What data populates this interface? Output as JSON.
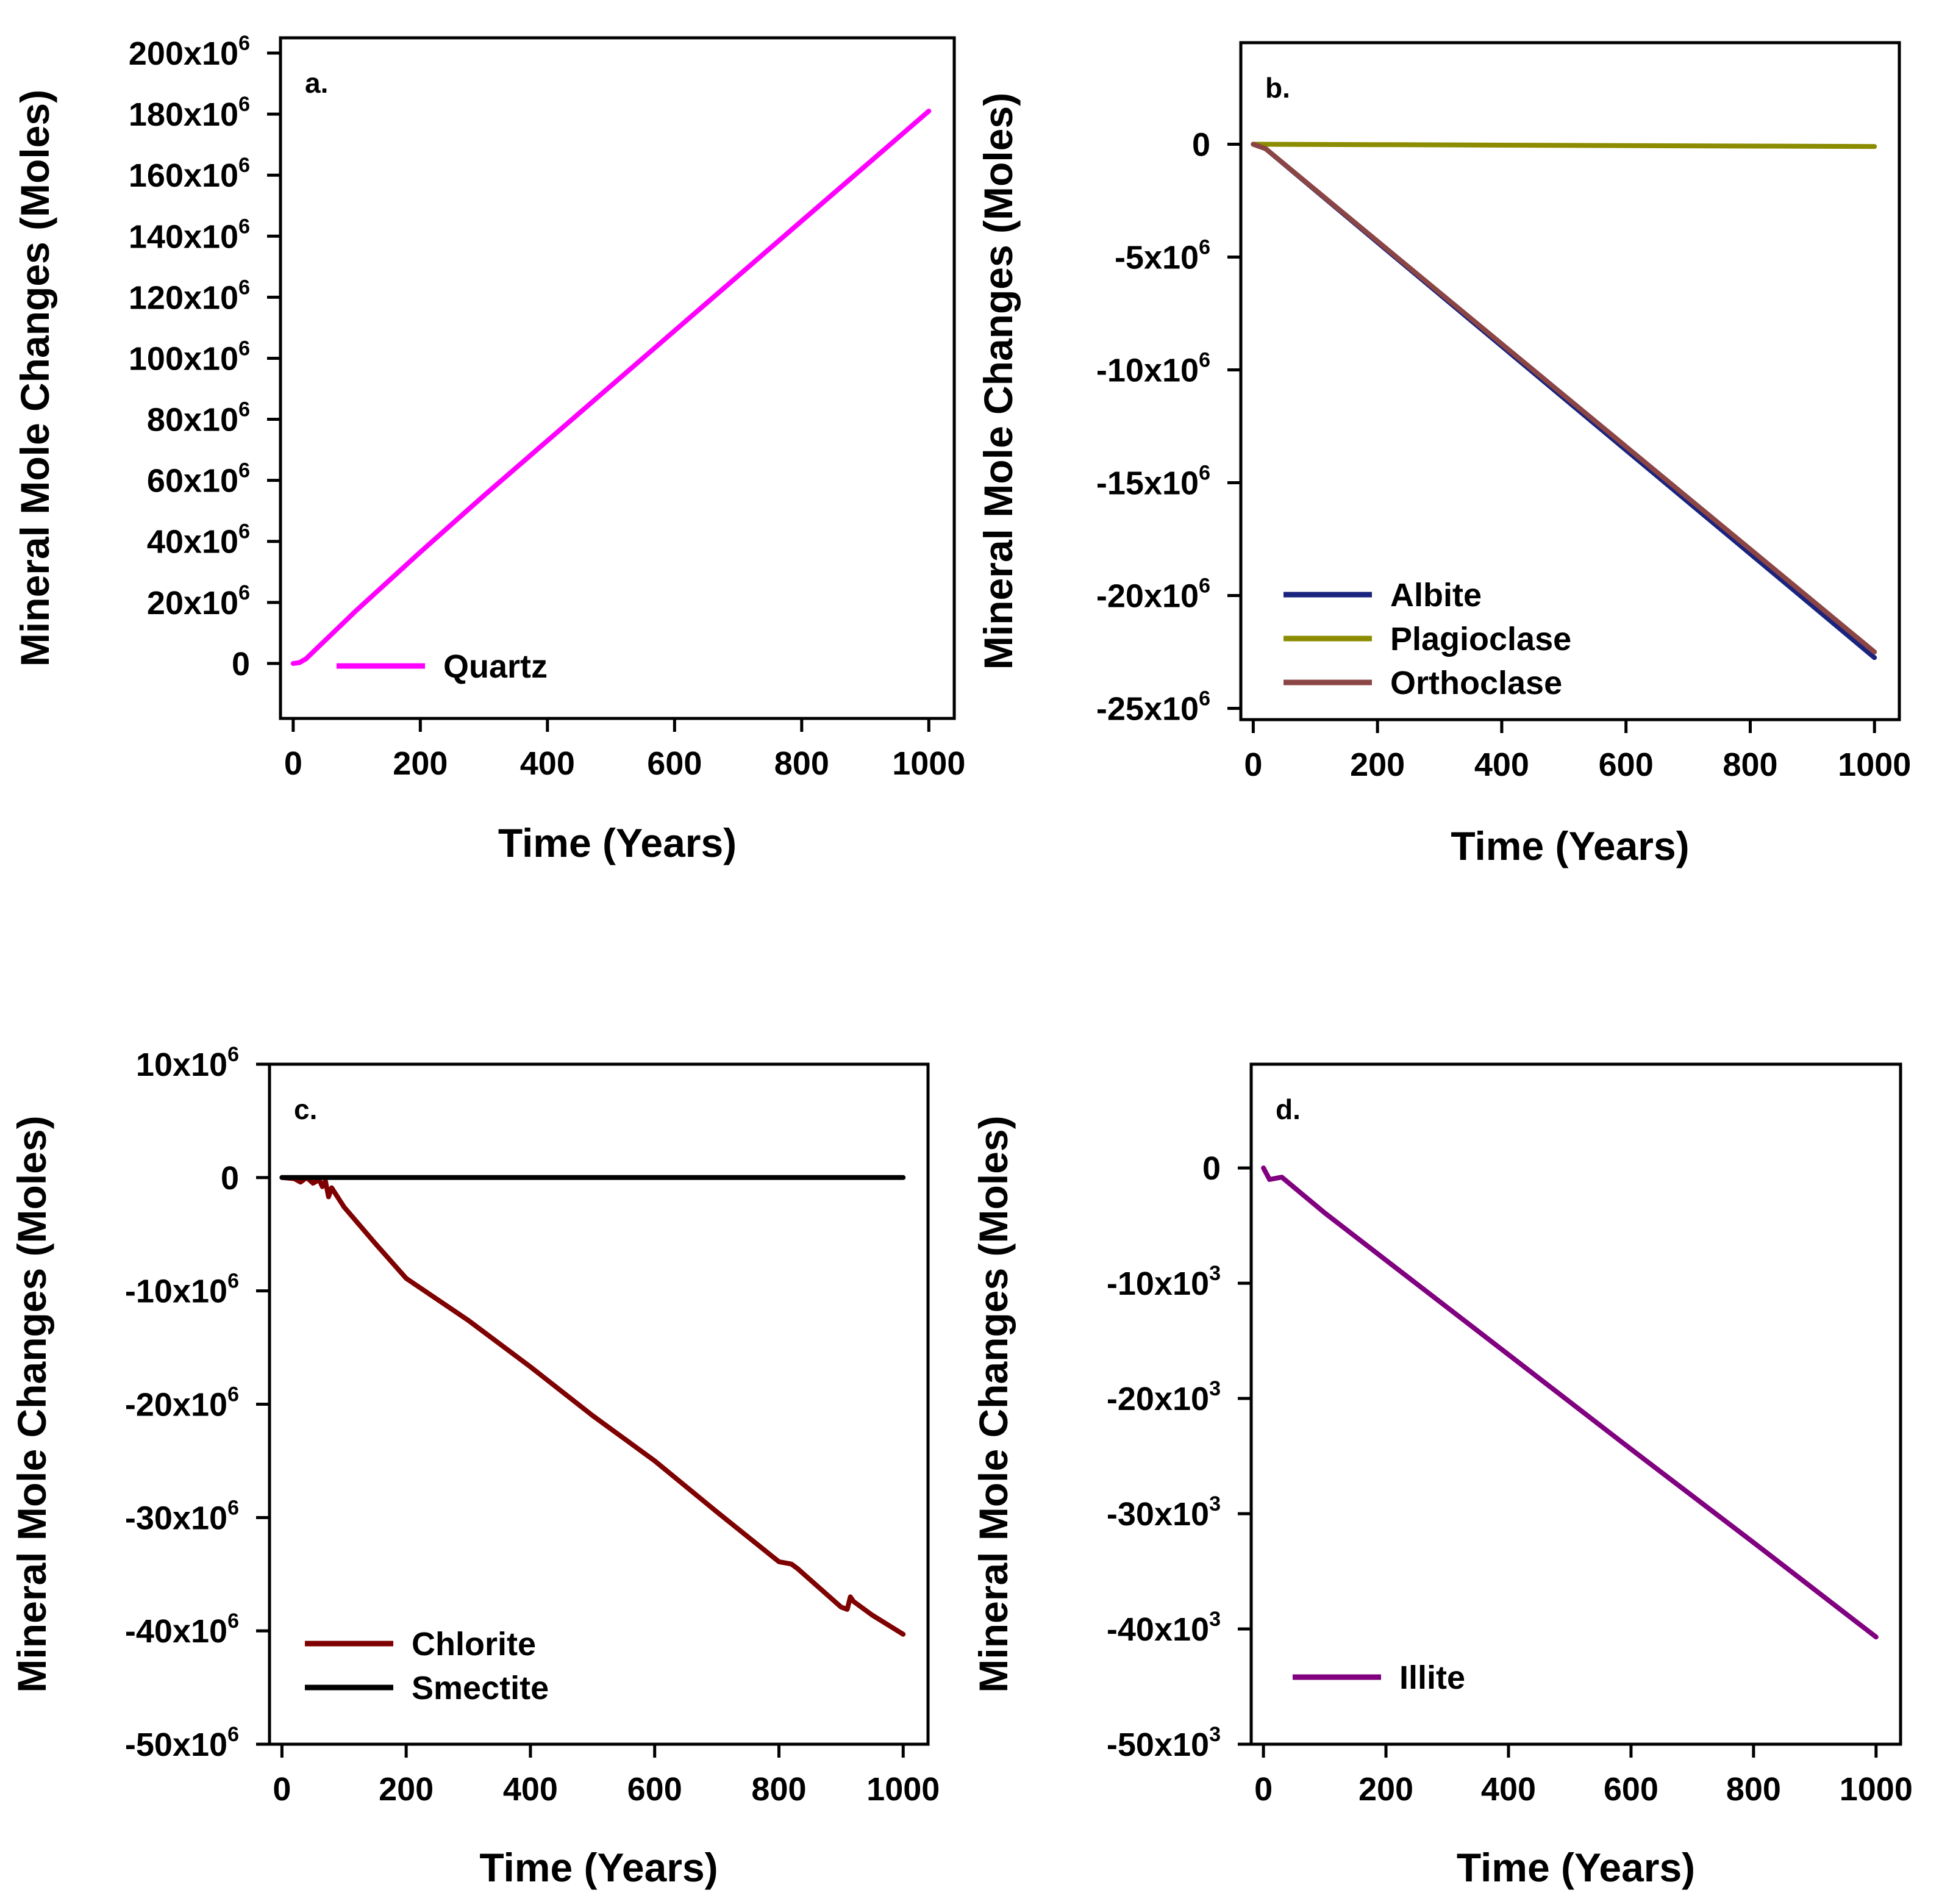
{
  "chart_data": [
    {
      "type": "line",
      "panel_label": "a.",
      "xlabel": "Time (Years)",
      "ylabel": "Mineral Mole Changes (Moles)",
      "xlim": [
        -20,
        1040
      ],
      "ylim": [
        -18000000,
        205000000
      ],
      "xticks": [
        {
          "value": 0,
          "label": "0"
        },
        {
          "value": 200,
          "label": "200"
        },
        {
          "value": 400,
          "label": "400"
        },
        {
          "value": 600,
          "label": "600"
        },
        {
          "value": 800,
          "label": "800"
        },
        {
          "value": 1000,
          "label": "1000"
        }
      ],
      "yticks": [
        {
          "value": 200000000,
          "base": "200x10",
          "exp": "6"
        },
        {
          "value": 180000000,
          "base": "180x10",
          "exp": "6"
        },
        {
          "value": 160000000,
          "base": "160x10",
          "exp": "6"
        },
        {
          "value": 140000000,
          "base": "140x10",
          "exp": "6"
        },
        {
          "value": 120000000,
          "base": "120x10",
          "exp": "6"
        },
        {
          "value": 100000000,
          "base": "100x10",
          "exp": "6"
        },
        {
          "value": 80000000,
          "base": "80x10",
          "exp": "6"
        },
        {
          "value": 60000000,
          "base": "60x10",
          "exp": "6"
        },
        {
          "value": 40000000,
          "base": "40x10",
          "exp": "6"
        },
        {
          "value": 20000000,
          "base": "20x10",
          "exp": "6"
        },
        {
          "value": 0,
          "base": "0",
          "exp": ""
        }
      ],
      "series": [
        {
          "name": "Quartz",
          "color": "#ff00ff",
          "x": [
            0,
            10,
            20,
            40,
            60,
            100,
            200,
            300,
            400,
            500,
            600,
            700,
            800,
            900,
            1000
          ],
          "y": [
            0,
            300000,
            1500000,
            5500000,
            9500000,
            17500000,
            36500000,
            55000000,
            73000000,
            91000000,
            109000000,
            127000000,
            145000000,
            163000000,
            181000000
          ]
        }
      ],
      "legend": "bottom-left"
    },
    {
      "type": "line",
      "panel_label": "b.",
      "xlabel": "Time (Years)",
      "ylabel": "Mineral Mole Changes (Moles)",
      "xlim": [
        -20,
        1040
      ],
      "ylim": [
        -25500000,
        4500000
      ],
      "xticks": [
        {
          "value": 0,
          "label": "0"
        },
        {
          "value": 200,
          "label": "200"
        },
        {
          "value": 400,
          "label": "400"
        },
        {
          "value": 600,
          "label": "600"
        },
        {
          "value": 800,
          "label": "800"
        },
        {
          "value": 1000,
          "label": "1000"
        }
      ],
      "yticks": [
        {
          "value": 0,
          "base": "0",
          "exp": ""
        },
        {
          "value": -5000000,
          "base": "-5x10",
          "exp": "6"
        },
        {
          "value": -10000000,
          "base": "-10x10",
          "exp": "6"
        },
        {
          "value": -15000000,
          "base": "-15x10",
          "exp": "6"
        },
        {
          "value": -20000000,
          "base": "-20x10",
          "exp": "6"
        },
        {
          "value": -25000000,
          "base": "-25x10",
          "exp": "6"
        }
      ],
      "series": [
        {
          "name": "Albite",
          "color": "#1a237e",
          "x": [
            0,
            20,
            200,
            400,
            600,
            800,
            1000
          ],
          "y": [
            0,
            -200000,
            -4350000,
            -8950000,
            -13550000,
            -18150000,
            -22750000
          ]
        },
        {
          "name": "Plagioclase",
          "color": "#8c8c00",
          "x": [
            0,
            200,
            400,
            600,
            800,
            1000
          ],
          "y": [
            0,
            -20000,
            -40000,
            -60000,
            -80000,
            -100000
          ]
        },
        {
          "name": "Orthoclase",
          "color": "#8b4545",
          "x": [
            0,
            20,
            200,
            400,
            600,
            800,
            1000
          ],
          "y": [
            0,
            -200000,
            -4300000,
            -8850000,
            -13400000,
            -17950000,
            -22500000
          ]
        }
      ],
      "legend": "bottom-left"
    },
    {
      "type": "line",
      "panel_label": "c.",
      "xlabel": "Time (Years)",
      "ylabel": "Mineral Mole Changes (Moles)",
      "xlim": [
        -20,
        1040
      ],
      "ylim": [
        -50000000,
        10000000
      ],
      "xticks": [
        {
          "value": 0,
          "label": "0"
        },
        {
          "value": 200,
          "label": "200"
        },
        {
          "value": 400,
          "label": "400"
        },
        {
          "value": 600,
          "label": "600"
        },
        {
          "value": 800,
          "label": "800"
        },
        {
          "value": 1000,
          "label": "1000"
        }
      ],
      "yticks": [
        {
          "value": 10000000,
          "base": "10x10",
          "exp": "6"
        },
        {
          "value": 0,
          "base": "0",
          "exp": ""
        },
        {
          "value": -10000000,
          "base": "-10x10",
          "exp": "6"
        },
        {
          "value": -20000000,
          "base": "-20x10",
          "exp": "6"
        },
        {
          "value": -30000000,
          "base": "-30x10",
          "exp": "6"
        },
        {
          "value": -40000000,
          "base": "-40x10",
          "exp": "6"
        },
        {
          "value": -50000000,
          "base": "-50x10",
          "exp": "6"
        }
      ],
      "series": [
        {
          "name": "Chlorite",
          "color": "#7f0000",
          "x": [
            0,
            20,
            30,
            40,
            50,
            60,
            65,
            70,
            75,
            80,
            100,
            150,
            200,
            300,
            400,
            500,
            600,
            700,
            800,
            820,
            830,
            900,
            910,
            915,
            920,
            950,
            1000
          ],
          "y": [
            0,
            -100000,
            -400000,
            0,
            -500000,
            -200000,
            -800000,
            -300000,
            -1700000,
            -900000,
            -2600000,
            -5800000,
            -8900000,
            -12600000,
            -16700000,
            -21000000,
            -25000000,
            -29500000,
            -33900000,
            -34100000,
            -34500000,
            -37900000,
            -38100000,
            -37000000,
            -37400000,
            -38600000,
            -40300000
          ]
        },
        {
          "name": "Smectite",
          "color": "#000000",
          "x": [
            0,
            1000
          ],
          "y": [
            0,
            0
          ]
        }
      ],
      "legend": "bottom-left"
    },
    {
      "type": "line",
      "panel_label": "d.",
      "xlabel": "Time (Years)",
      "ylabel": "Mineral Mole Changes (Moles)",
      "xlim": [
        -20,
        1040
      ],
      "ylim": [
        -50000,
        9000
      ],
      "xticks": [
        {
          "value": 0,
          "label": "0"
        },
        {
          "value": 200,
          "label": "200"
        },
        {
          "value": 400,
          "label": "400"
        },
        {
          "value": 600,
          "label": "600"
        },
        {
          "value": 800,
          "label": "800"
        },
        {
          "value": 1000,
          "label": "1000"
        }
      ],
      "yticks": [
        {
          "value": 0,
          "base": "0",
          "exp": ""
        },
        {
          "value": -10000,
          "base": "-10x10",
          "exp": "3"
        },
        {
          "value": -20000,
          "base": "-20x10",
          "exp": "3"
        },
        {
          "value": -30000,
          "base": "-30x10",
          "exp": "3"
        },
        {
          "value": -40000,
          "base": "-40x10",
          "exp": "3"
        },
        {
          "value": -50000,
          "base": "-50x10",
          "exp": "3"
        }
      ],
      "series": [
        {
          "name": "Illite",
          "color": "#800080",
          "x": [
            0,
            10,
            30,
            100,
            200,
            400,
            600,
            800,
            1000
          ],
          "y": [
            0,
            -1000.0,
            -800,
            -3900,
            -8000,
            -16200,
            -24400,
            -32500,
            -40700
          ]
        }
      ],
      "legend": "bottom-left"
    }
  ]
}
